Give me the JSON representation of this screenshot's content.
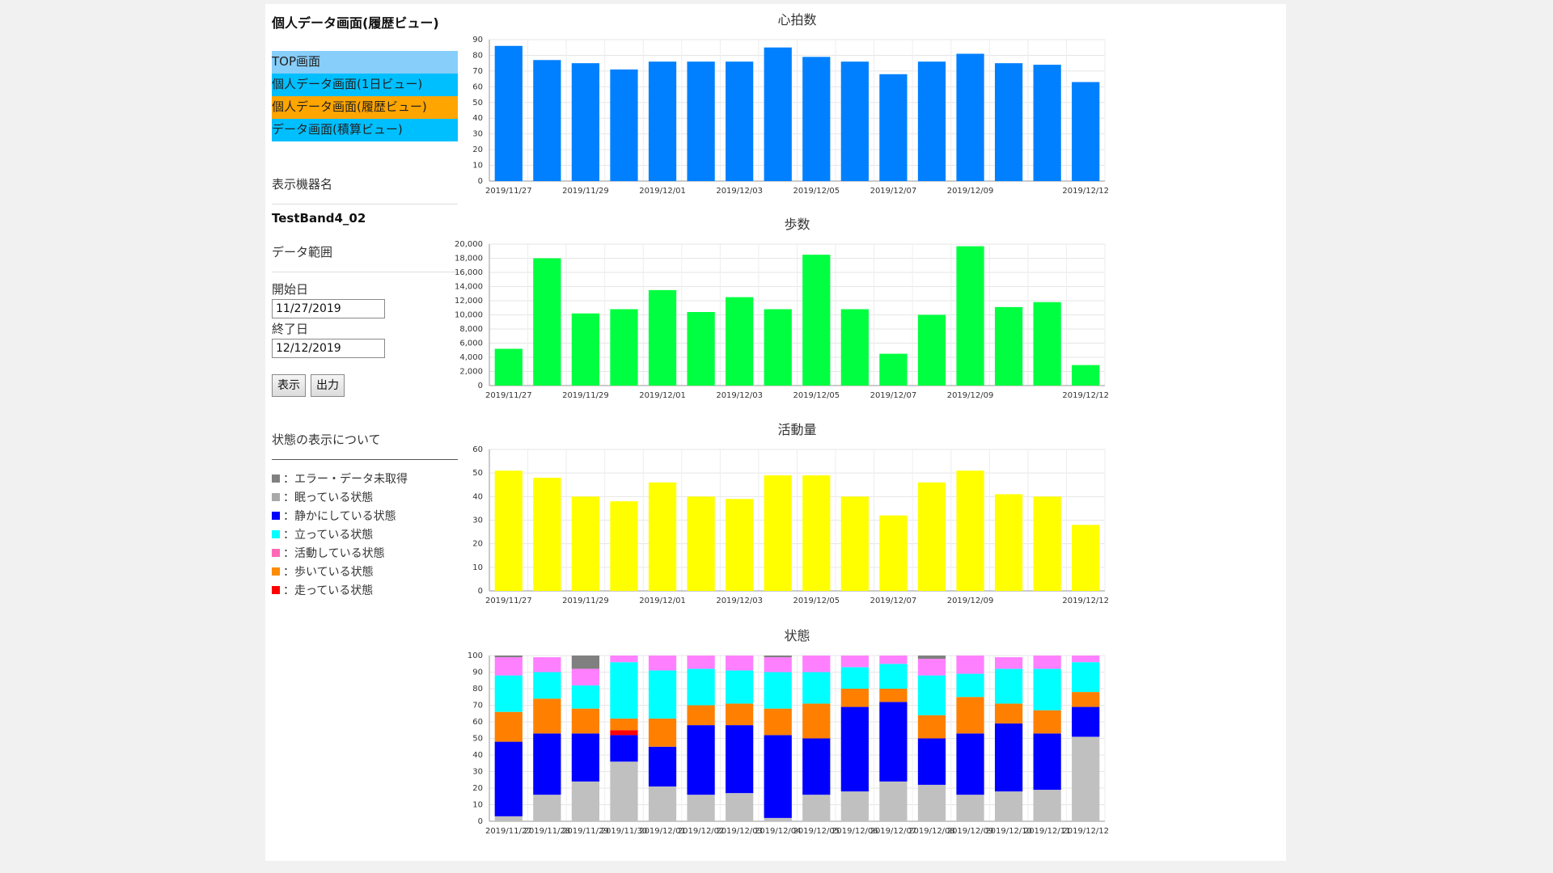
{
  "sidebar": {
    "title": "個人データ画面(履歴ビュー)",
    "nav": [
      {
        "label": "TOP画面",
        "color": "#87cefa"
      },
      {
        "label": "個人データ画面(1日ビュー)",
        "color": "#00bfff"
      },
      {
        "label": "個人データ画面(履歴ビュー)",
        "color": "#ffa500"
      },
      {
        "label": "データ画面(積算ビュー)",
        "color": "#00bfff"
      }
    ],
    "device_label": "表示機器名",
    "device_name": "TestBand4_02",
    "range_label": "データ範囲",
    "start_label": "開始日",
    "start_value": "11/27/2019",
    "end_label": "終了日",
    "end_value": "12/12/2019",
    "show_button": "表示",
    "export_button": "出力",
    "legend_title": "状態の表示について",
    "legend": [
      {
        "label": "：エラー・データ未取得",
        "color": "#808080"
      },
      {
        "label": "：眠っている状態",
        "color": "#a9a9a9"
      },
      {
        "label": "：静かにしている状態",
        "color": "#0000ff"
      },
      {
        "label": "：立っている状態",
        "color": "#00ffff"
      },
      {
        "label": "：活動している状態",
        "color": "#ff69b4"
      },
      {
        "label": "：歩いている状態",
        "color": "#ff8c00"
      },
      {
        "label": "：走っている状態",
        "color": "#ff0000"
      }
    ]
  },
  "chart_data": [
    {
      "type": "bar",
      "title": "心拍数",
      "color": "#0080ff",
      "categories": [
        "2019/11/27",
        "2019/11/28",
        "2019/11/29",
        "2019/11/30",
        "2019/12/01",
        "2019/12/02",
        "2019/12/03",
        "2019/12/04",
        "2019/12/05",
        "2019/12/06",
        "2019/12/07",
        "2019/12/08",
        "2019/12/09",
        "2019/12/10",
        "2019/12/11",
        "2019/12/12"
      ],
      "tick_labels": [
        "2019/11/27",
        "",
        "2019/11/29",
        "",
        "2019/12/01",
        "",
        "2019/12/03",
        "",
        "2019/12/05",
        "",
        "2019/12/07",
        "",
        "2019/12/09",
        "",
        "",
        "2019/12/12"
      ],
      "values": [
        86,
        77,
        75,
        71,
        76,
        76,
        76,
        85,
        79,
        76,
        68,
        76,
        81,
        75,
        74,
        63
      ],
      "ylim": [
        0,
        90
      ],
      "yticks": [
        0,
        10,
        20,
        30,
        40,
        50,
        60,
        70,
        80,
        90
      ],
      "ytick_labels": [
        "0",
        "10",
        "20",
        "30",
        "40",
        "50",
        "60",
        "70",
        "80",
        "90"
      ]
    },
    {
      "type": "bar",
      "title": "歩数",
      "color": "#00ff40",
      "categories": [
        "2019/11/27",
        "2019/11/28",
        "2019/11/29",
        "2019/11/30",
        "2019/12/01",
        "2019/12/02",
        "2019/12/03",
        "2019/12/04",
        "2019/12/05",
        "2019/12/06",
        "2019/12/07",
        "2019/12/08",
        "2019/12/09",
        "2019/12/10",
        "2019/12/11",
        "2019/12/12"
      ],
      "tick_labels": [
        "2019/11/27",
        "",
        "2019/11/29",
        "",
        "2019/12/01",
        "",
        "2019/12/03",
        "",
        "2019/12/05",
        "",
        "2019/12/07",
        "",
        "2019/12/09",
        "",
        "",
        "2019/12/12"
      ],
      "values": [
        5200,
        18000,
        10200,
        10800,
        13500,
        10400,
        12500,
        10800,
        18500,
        10800,
        4500,
        10000,
        19700,
        11100,
        11800,
        2900
      ],
      "ylim": [
        0,
        20000
      ],
      "yticks": [
        0,
        2000,
        4000,
        6000,
        8000,
        10000,
        12000,
        14000,
        16000,
        18000,
        20000
      ],
      "ytick_labels": [
        "0",
        "2,000",
        "4,000",
        "6,000",
        "8,000",
        "10,000",
        "12,000",
        "14,000",
        "16,000",
        "18,000",
        "20,000"
      ]
    },
    {
      "type": "bar",
      "title": "活動量",
      "color": "#ffff00",
      "categories": [
        "2019/11/27",
        "2019/11/28",
        "2019/11/29",
        "2019/11/30",
        "2019/12/01",
        "2019/12/02",
        "2019/12/03",
        "2019/12/04",
        "2019/12/05",
        "2019/12/06",
        "2019/12/07",
        "2019/12/08",
        "2019/12/09",
        "2019/12/10",
        "2019/12/11",
        "2019/12/12"
      ],
      "tick_labels": [
        "2019/11/27",
        "",
        "2019/11/29",
        "",
        "2019/12/01",
        "",
        "2019/12/03",
        "",
        "2019/12/05",
        "",
        "2019/12/07",
        "",
        "2019/12/09",
        "",
        "",
        "2019/12/12"
      ],
      "values": [
        51,
        48,
        40,
        38,
        46,
        40,
        39,
        49,
        49,
        40,
        32,
        46,
        51,
        41,
        40,
        28
      ],
      "ylim": [
        0,
        60
      ],
      "yticks": [
        0,
        10,
        20,
        30,
        40,
        50,
        60
      ],
      "ytick_labels": [
        "0",
        "10",
        "20",
        "30",
        "40",
        "50",
        "60"
      ]
    },
    {
      "type": "bar",
      "stacked": true,
      "title": "状態",
      "categories": [
        "2019/11/27",
        "2019/11/28",
        "2019/11/29",
        "2019/11/30",
        "2019/12/01",
        "2019/12/02",
        "2019/12/03",
        "2019/12/04",
        "2019/12/05",
        "2019/12/06",
        "2019/12/07",
        "2019/12/08",
        "2019/12/09",
        "2019/12/10",
        "2019/12/11",
        "2019/12/12"
      ],
      "tick_labels": [
        "2019/11/27",
        "2019/11/28",
        "2019/11/29",
        "2019/11/30",
        "2019/12/01",
        "2019/12/02",
        "2019/12/03",
        "2019/12/04",
        "2019/12/05",
        "2019/12/06",
        "2019/12/07",
        "2019/12/08",
        "2019/12/09",
        "2019/12/10",
        "2019/12/11",
        "2019/12/12"
      ],
      "ylim": [
        0,
        100
      ],
      "yticks": [
        0,
        10,
        20,
        30,
        40,
        50,
        60,
        70,
        80,
        90,
        100
      ],
      "ytick_labels": [
        "0",
        "10",
        "20",
        "30",
        "40",
        "50",
        "60",
        "70",
        "80",
        "90",
        "100"
      ],
      "series": [
        {
          "color": "#c0c0c0",
          "values": [
            3,
            16,
            24,
            36,
            21,
            16,
            17,
            2,
            16,
            18,
            24,
            22,
            16,
            18,
            19,
            51
          ]
        },
        {
          "color": "#0000ff",
          "values": [
            45,
            37,
            29,
            16,
            24,
            42,
            41,
            50,
            34,
            51,
            48,
            28,
            37,
            41,
            34,
            18
          ]
        },
        {
          "color": "#ff0000",
          "values": [
            0,
            0,
            0,
            3,
            0,
            0,
            0,
            0,
            0,
            0,
            0,
            0,
            0,
            0,
            0,
            0
          ]
        },
        {
          "color": "#ff8000",
          "values": [
            18,
            21,
            15,
            7,
            17,
            12,
            13,
            16,
            21,
            11,
            8,
            14,
            22,
            12,
            14,
            9
          ]
        },
        {
          "color": "#00ffff",
          "values": [
            22,
            16,
            14,
            34,
            29,
            22,
            20,
            22,
            19,
            13,
            15,
            24,
            14,
            21,
            25,
            18
          ]
        },
        {
          "color": "#ff80ff",
          "values": [
            11,
            9,
            10,
            4,
            9,
            8,
            9,
            9,
            10,
            7,
            5,
            10,
            11,
            7,
            8,
            4
          ]
        },
        {
          "color": "#808080",
          "values": [
            1,
            0,
            8,
            0,
            0,
            0,
            0,
            1,
            0,
            0,
            0,
            2,
            0,
            0,
            0,
            0
          ]
        }
      ]
    }
  ]
}
